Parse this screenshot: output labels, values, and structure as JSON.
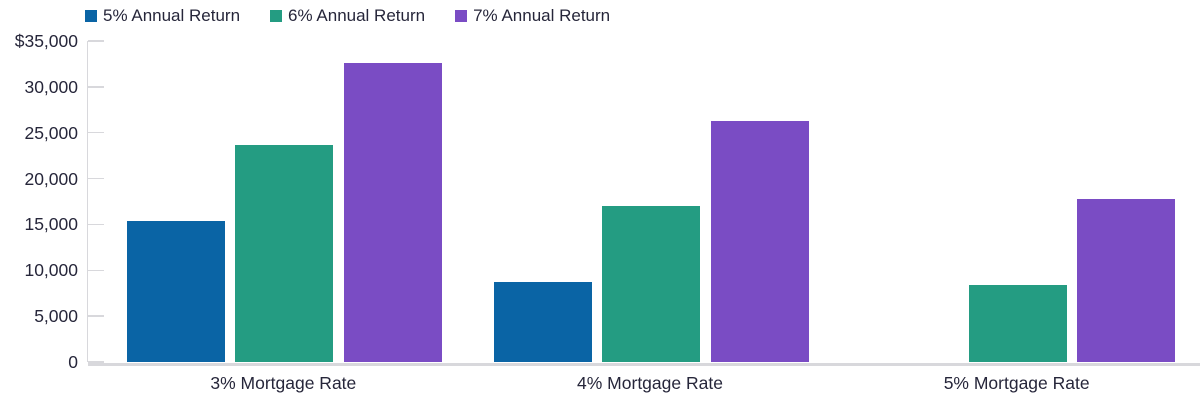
{
  "chart_data": {
    "type": "bar",
    "title": "",
    "categories": [
      "3% Mortgage Rate",
      "4% Mortgage Rate",
      "5% Mortgage Rate"
    ],
    "series": [
      {
        "name": "5% Annual Return",
        "color": "#0a64a5",
        "values": [
          15400,
          8700,
          0
        ]
      },
      {
        "name": "6% Annual Return",
        "color": "#249c82",
        "values": [
          23650,
          17000,
          8450
        ]
      },
      {
        "name": "7% Annual Return",
        "color": "#7a4cc4",
        "values": [
          32650,
          26300,
          17750
        ]
      }
    ],
    "y_axis": {
      "min": 0,
      "max": 35000,
      "tick_step": 5000,
      "tick_labels": [
        "0",
        "5,000",
        "10,000",
        "15,000",
        "20,000",
        "25,000",
        "30,000",
        "$35,000"
      ]
    },
    "x_axis": {
      "label": ""
    },
    "legend_position": "top-left",
    "grid": false,
    "colors": {
      "axis_line": "#d8d8dc",
      "text": "#26263a",
      "background": "#ffffff"
    }
  }
}
